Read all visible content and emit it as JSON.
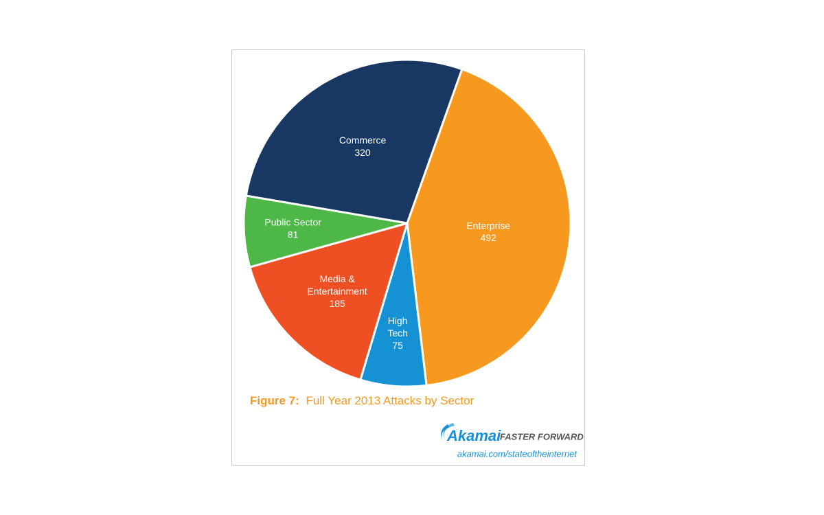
{
  "chart_data": {
    "type": "pie",
    "title_label": "Figure 7:",
    "title": "Full Year 2013 Attacks by Sector",
    "categories": [
      "Enterprise",
      "High Tech",
      "Media & Entertainment",
      "Public Sector",
      "Commerce"
    ],
    "values": [
      492,
      75,
      185,
      81,
      320
    ],
    "colors": [
      "#f7991f",
      "#1592d4",
      "#ee5023",
      "#4db748",
      "#183863"
    ]
  },
  "branding": {
    "logo": "Akamai",
    "tagline": "FASTER FORWARD",
    "url": "akamai.com/stateoftheinternet"
  }
}
